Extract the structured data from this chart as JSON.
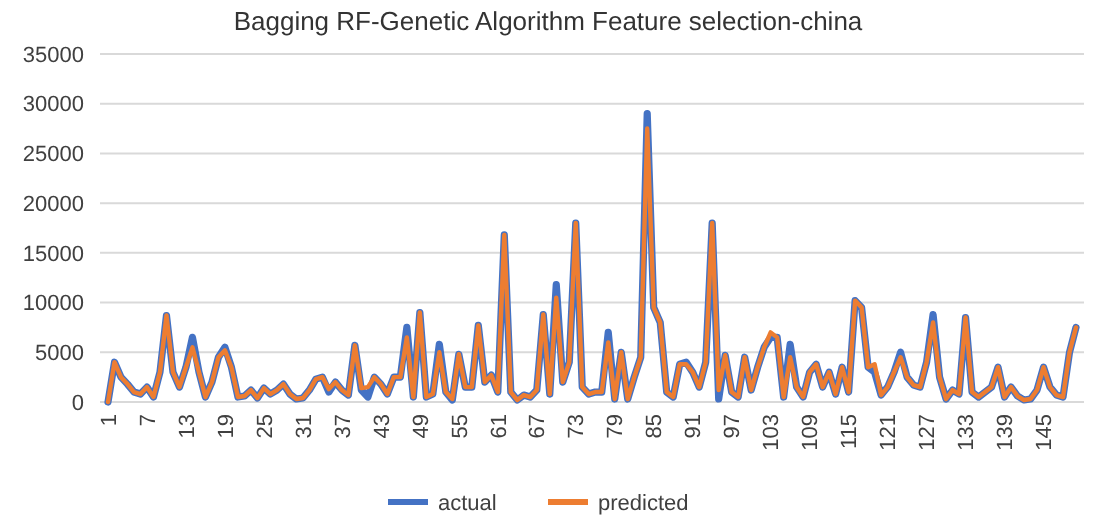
{
  "chart_data": {
    "type": "line",
    "title": "Bagging RF-Genetic Algorithm Feature selection-china",
    "categories": [
      "1",
      null,
      null,
      null,
      null,
      null,
      "7",
      null,
      null,
      null,
      null,
      null,
      "13",
      null,
      null,
      null,
      null,
      null,
      "19",
      null,
      null,
      null,
      null,
      null,
      "25",
      null,
      null,
      null,
      null,
      null,
      "31",
      null,
      null,
      null,
      null,
      null,
      "37",
      null,
      null,
      null,
      null,
      null,
      "43",
      null,
      null,
      null,
      null,
      null,
      "49",
      null,
      null,
      null,
      null,
      null,
      "55",
      null,
      null,
      null,
      null,
      null,
      "61",
      null,
      null,
      null,
      null,
      null,
      "67",
      null,
      null,
      null,
      null,
      null,
      "73",
      null,
      null,
      null,
      null,
      null,
      "79",
      null,
      null,
      null,
      null,
      null,
      "85",
      null,
      null,
      null,
      null,
      null,
      "91",
      null,
      null,
      null,
      null,
      null,
      "97",
      null,
      null,
      null,
      null,
      null,
      "103",
      null,
      null,
      null,
      null,
      null,
      "109",
      null,
      null,
      null,
      null,
      null,
      "115",
      null,
      null,
      null,
      null,
      null,
      "121",
      null,
      null,
      null,
      null,
      null,
      "127",
      null,
      null,
      null,
      null,
      null,
      "133",
      null,
      null,
      null,
      null,
      null,
      "139",
      null,
      null,
      null,
      null,
      null,
      "145",
      null,
      null,
      null,
      null,
      null
    ],
    "series": [
      {
        "name": "actual",
        "color": "#4472c4",
        "values": [
          0,
          4000,
          2500,
          1800,
          1000,
          800,
          1500,
          500,
          3000,
          8700,
          3000,
          1500,
          3500,
          6500,
          3000,
          500,
          2000,
          4500,
          5500,
          3500,
          500,
          600,
          1200,
          400,
          1400,
          800,
          1200,
          1800,
          800,
          300,
          400,
          1200,
          2300,
          2500,
          1000,
          2000,
          1200,
          700,
          5700,
          1200,
          500,
          2500,
          1800,
          800,
          2500,
          2500,
          7500,
          500,
          9000,
          500,
          800,
          5800,
          1000,
          200,
          4800,
          1500,
          1500,
          7700,
          2000,
          2700,
          1000,
          16800,
          1000,
          200,
          700,
          500,
          1200,
          8800,
          800,
          11800,
          2000,
          4000,
          18000,
          1500,
          800,
          1000,
          1000,
          7000,
          300,
          5000,
          300,
          2500,
          4500,
          29000,
          9500,
          8000,
          1000,
          500,
          3800,
          4000,
          3000,
          1500,
          4000,
          18000,
          300,
          4700,
          1000,
          500,
          4500,
          1200,
          3500,
          5500,
          6500,
          6500,
          500,
          5800,
          1500,
          500,
          3000,
          3800,
          1500,
          3000,
          800,
          3500,
          1000,
          10200,
          9500,
          3500,
          3000,
          700,
          1500,
          3000,
          5000,
          2500,
          1700,
          1500,
          4000,
          8800,
          2500,
          300,
          1200,
          800,
          8500,
          1000,
          500,
          1000,
          1500,
          3500,
          500,
          1500,
          600,
          200,
          300,
          1200,
          3500,
          1500,
          700,
          500,
          5000,
          7500
        ]
      },
      {
        "name": "predicted",
        "color": "#ed7d31",
        "values": [
          0,
          4000,
          2500,
          1800,
          1000,
          800,
          1500,
          500,
          3000,
          8700,
          3000,
          1500,
          3500,
          5500,
          3000,
          500,
          2000,
          4500,
          5200,
          3500,
          500,
          600,
          1200,
          400,
          1400,
          800,
          1200,
          1800,
          800,
          300,
          400,
          1200,
          2300,
          2500,
          1300,
          2000,
          1200,
          700,
          5700,
          1400,
          1500,
          2500,
          1800,
          800,
          2500,
          2500,
          6500,
          500,
          9000,
          500,
          800,
          5000,
          1000,
          300,
          4800,
          1500,
          1500,
          7700,
          2000,
          2700,
          1000,
          16800,
          1000,
          200,
          700,
          500,
          1200,
          8800,
          800,
          10500,
          2000,
          4000,
          18000,
          1500,
          800,
          1000,
          1000,
          6000,
          300,
          5000,
          300,
          2500,
          4500,
          27500,
          9500,
          8000,
          1000,
          500,
          3800,
          3800,
          3000,
          1500,
          4000,
          18000,
          1200,
          4700,
          1000,
          500,
          4500,
          1200,
          3500,
          5500,
          7000,
          6500,
          500,
          4500,
          1500,
          500,
          3000,
          3800,
          1500,
          3000,
          800,
          3500,
          1000,
          10200,
          9500,
          3500,
          3800,
          700,
          1500,
          3000,
          4500,
          2500,
          1700,
          1500,
          4000,
          8000,
          2500,
          300,
          1200,
          800,
          8500,
          1000,
          500,
          1000,
          1500,
          3500,
          500,
          1500,
          600,
          200,
          300,
          1200,
          3500,
          1500,
          700,
          500,
          5000,
          7500
        ]
      }
    ],
    "ylim": [
      0,
      35000
    ],
    "yticks": [
      0,
      5000,
      10000,
      15000,
      20000,
      25000,
      30000,
      35000
    ],
    "grid": "y",
    "legend": "bottom",
    "marker": "none",
    "line_style": "solid"
  }
}
